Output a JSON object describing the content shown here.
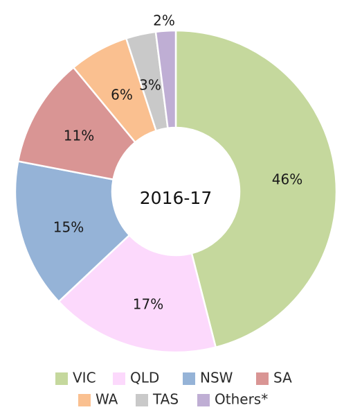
{
  "chart_data": {
    "type": "pie",
    "donut": true,
    "center_label": "2016-17",
    "categories": [
      "VIC",
      "QLD",
      "NSW",
      "SA",
      "WA",
      "TAS",
      "Others*"
    ],
    "values": [
      46,
      17,
      15,
      11,
      6,
      3,
      2
    ],
    "value_labels": [
      "46%",
      "17%",
      "15%",
      "11%",
      "6%",
      "3%",
      "2%"
    ],
    "colors": [
      "#c5d89d",
      "#fcd9fc",
      "#95b3d7",
      "#d99594",
      "#fac090",
      "#c9c9c9",
      "#bfaed4"
    ],
    "start": "12 o'clock",
    "direction": "clockwise",
    "legend": {
      "placement": "bottom",
      "entries": [
        "VIC",
        "QLD",
        "NSW",
        "SA",
        "WA",
        "TAS",
        "Others*"
      ]
    }
  }
}
